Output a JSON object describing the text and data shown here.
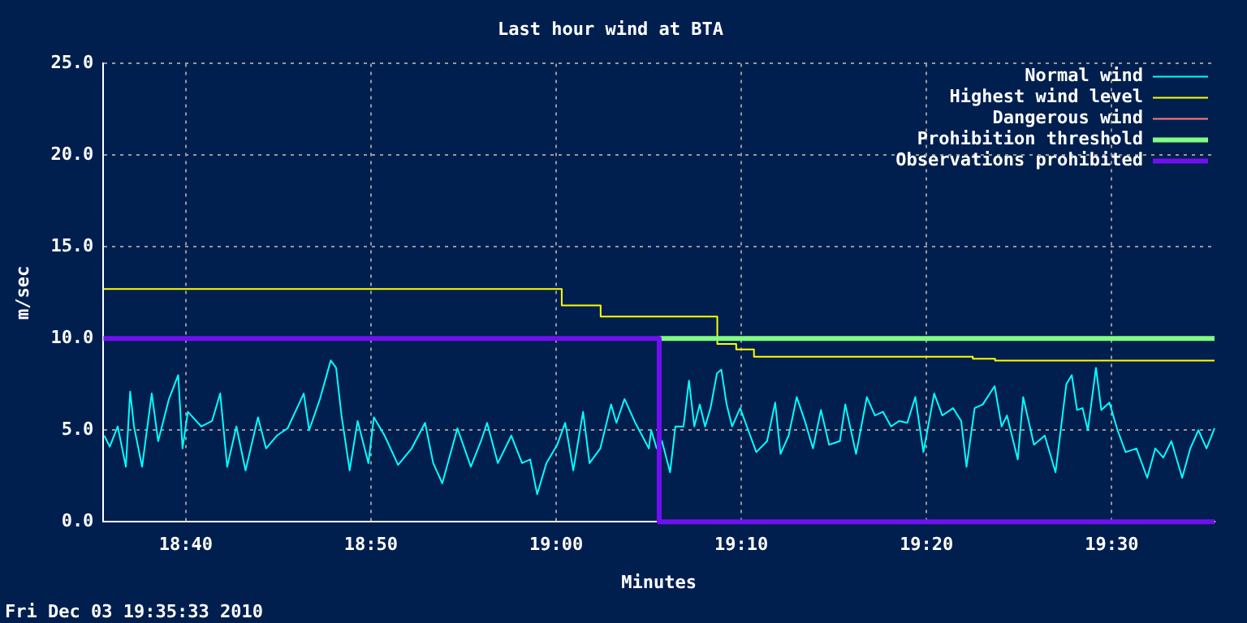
{
  "chart_data": {
    "type": "line",
    "title": "Last hour wind at BTA",
    "xlabel": "Minutes",
    "ylabel": "m/sec",
    "annotations": [
      "Fri Dec 03 19:35:33 2010"
    ],
    "xlim": [
      18.5925,
      19.5925
    ],
    "xticks": [
      {
        "value": 18.6667,
        "label": "18:40"
      },
      {
        "value": 18.8333,
        "label": "18:50"
      },
      {
        "value": 19,
        "label": "19:00"
      },
      {
        "value": 19.1667,
        "label": "19:10"
      },
      {
        "value": 19.3333,
        "label": "19:20"
      },
      {
        "value": 19.5,
        "label": "19:30"
      }
    ],
    "ylim": [
      0,
      25
    ],
    "yticks": [
      {
        "value": 0,
        "label": "0.0"
      },
      {
        "value": 5,
        "label": "5.0"
      },
      {
        "value": 10,
        "label": "10.0"
      },
      {
        "value": 15,
        "label": "15.0"
      },
      {
        "value": 20,
        "label": "20.0"
      },
      {
        "value": 25,
        "label": "25.0"
      }
    ],
    "grid": true,
    "legend": "top right",
    "marker": "none",
    "series": [
      {
        "name": "Normal wind",
        "color": "#00ffff",
        "x": [
          18.5933,
          18.5982,
          18.6054,
          18.6127,
          18.6166,
          18.62,
          18.6273,
          18.636,
          18.6418,
          18.6515,
          18.6598,
          18.6637,
          18.6685,
          18.6806,
          18.6903,
          18.6976,
          18.7039,
          18.7122,
          18.7204,
          18.7316,
          18.7389,
          18.7486,
          18.7583,
          18.7728,
          18.7777,
          18.7874,
          18.7971,
          18.8019,
          18.8068,
          18.8141,
          18.8213,
          18.831,
          18.8359,
          18.8456,
          18.8577,
          18.8699,
          18.882,
          18.8893,
          18.8975,
          18.9111,
          18.9232,
          18.9329,
          18.9378,
          18.9475,
          18.9596,
          18.9693,
          18.9766,
          18.9829,
          18.9912,
          19.0009,
          19.0081,
          19.0154,
          19.0242,
          19.03,
          19.0397,
          19.0494,
          19.0542,
          19.0615,
          19.0712,
          19.0834,
          19.0855,
          19.0904,
          19.0952,
          19.1025,
          19.1073,
          19.1146,
          19.1195,
          19.1243,
          19.1292,
          19.134,
          19.1389,
          19.1447,
          19.1486,
          19.1534,
          19.1583,
          19.1656,
          19.1728,
          19.1801,
          19.1898,
          19.1971,
          19.2019,
          19.2092,
          19.2165,
          19.2238,
          19.2311,
          19.2383,
          19.2456,
          19.2553,
          19.2602,
          19.2699,
          19.2796,
          19.2869,
          19.2941,
          19.3014,
          19.3087,
          19.316,
          19.3232,
          19.3305,
          19.3402,
          19.3475,
          19.3572,
          19.3645,
          19.3693,
          19.3766,
          19.3839,
          19.3946,
          19.4009,
          19.4057,
          19.4154,
          19.4203,
          19.43,
          19.4397,
          19.4494,
          19.4591,
          19.464,
          19.4688,
          19.4737,
          19.4785,
          19.4858,
          19.4906,
          19.4979,
          19.5052,
          19.5125,
          19.5222,
          19.5319,
          19.5392,
          19.5464,
          19.5537,
          19.5634,
          19.5707,
          19.578,
          19.5853,
          19.5925
        ],
        "values": [
          4.7,
          4.1,
          5.2,
          3.0,
          7.1,
          5.2,
          3.0,
          7.0,
          4.4,
          6.7,
          8.0,
          4.0,
          6.0,
          5.2,
          5.5,
          7.0,
          3.0,
          5.2,
          2.8,
          5.7,
          4.0,
          4.7,
          5.1,
          7.0,
          5.0,
          6.7,
          8.8,
          8.4,
          5.8,
          2.8,
          5.5,
          3.2,
          5.7,
          4.7,
          3.1,
          4.0,
          5.4,
          3.2,
          2.1,
          5.1,
          3.0,
          4.5,
          5.4,
          3.2,
          4.7,
          3.2,
          3.4,
          1.5,
          3.2,
          4.2,
          5.4,
          2.8,
          6.0,
          3.2,
          4.0,
          6.4,
          5.4,
          6.7,
          5.4,
          4.0,
          5.0,
          4.0,
          4.4,
          2.7,
          5.2,
          5.2,
          7.7,
          5.2,
          6.4,
          5.2,
          6.2,
          8.1,
          8.3,
          6.4,
          5.2,
          6.2,
          5.0,
          3.8,
          4.4,
          6.5,
          3.7,
          4.7,
          6.8,
          5.5,
          4.0,
          6.1,
          4.2,
          4.4,
          6.4,
          3.7,
          6.8,
          5.8,
          6.0,
          5.2,
          5.5,
          5.4,
          6.8,
          3.8,
          7.0,
          5.8,
          6.2,
          5.5,
          3.0,
          6.2,
          6.4,
          7.4,
          5.2,
          5.8,
          3.4,
          6.8,
          4.2,
          4.7,
          2.7,
          7.5,
          8.0,
          6.1,
          6.2,
          5.0,
          8.4,
          6.1,
          6.5,
          5.0,
          3.8,
          4.0,
          2.4,
          4.0,
          3.5,
          4.4,
          2.4,
          4.0,
          5.0,
          4.0,
          5.1
        ]
      },
      {
        "name": "Highest wind level",
        "color": "#ffff00",
        "type": "step",
        "x": [
          18.5925,
          19.005,
          19.04,
          19.145,
          19.162,
          19.178,
          19.375,
          19.395,
          19.5925
        ],
        "values": [
          12.7,
          11.8,
          11.2,
          9.7,
          9.4,
          9.0,
          8.9,
          8.8,
          8.8
        ]
      },
      {
        "name": "Dangerous wind",
        "color": "#ff8080"
      },
      {
        "name": "Prohibition threshold",
        "color": "#80ff80",
        "x": [
          19.0927,
          19.5925
        ],
        "values": [
          10,
          10
        ]
      },
      {
        "name": "Observations prohibited",
        "color": "#7010f0",
        "type": "step",
        "x": [
          18.5925,
          19.0927,
          19.5925
        ],
        "values": [
          10,
          0,
          0
        ]
      }
    ]
  }
}
